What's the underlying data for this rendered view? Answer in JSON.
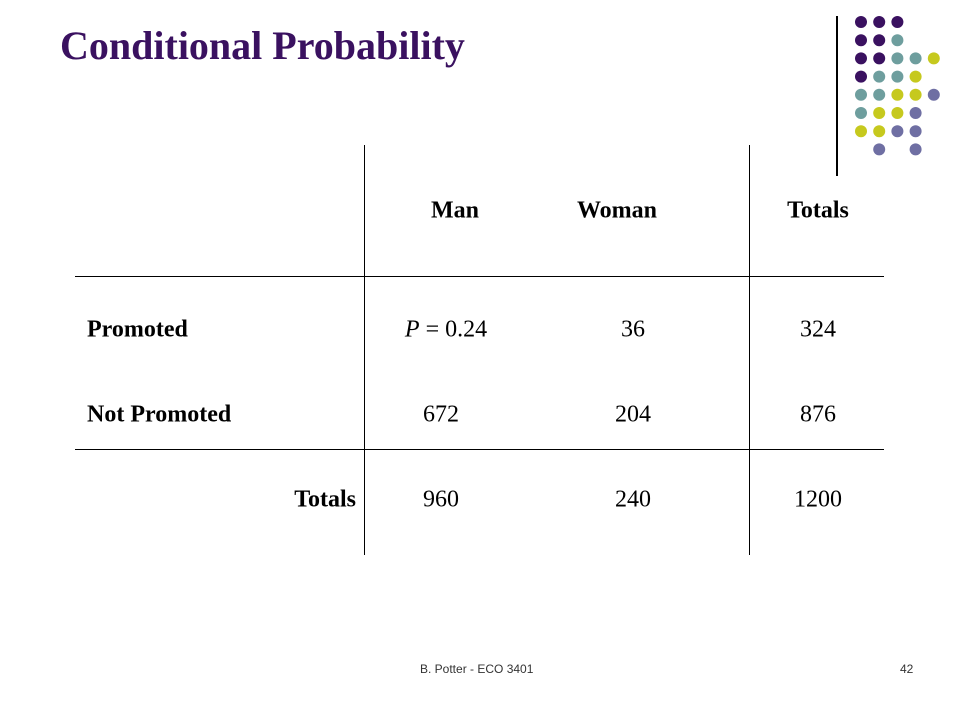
{
  "slide": {
    "title": "Conditional Probability",
    "footer": {
      "author_course": "B. Potter - ECO 3401",
      "page_number": "42"
    }
  },
  "colors": {
    "title": "#3a1160",
    "dot_purple": "#3a1160",
    "dot_teal": "#6e9e9e",
    "dot_yellow": "#c6c91e",
    "dot_lavender": "#6f6fa3"
  },
  "decoration": {
    "dot_grid": [
      [
        "purple",
        "purple",
        "purple",
        null,
        null
      ],
      [
        "purple",
        "purple",
        "teal",
        null,
        null
      ],
      [
        "purple",
        "purple",
        "teal",
        "teal",
        "yellow"
      ],
      [
        "purple",
        "teal",
        "teal",
        "yellow",
        null
      ],
      [
        "teal",
        "teal",
        "yellow",
        "yellow",
        "lavender"
      ],
      [
        "teal",
        "yellow",
        "yellow",
        "lavender",
        null
      ],
      [
        "yellow",
        "yellow",
        "lavender",
        "lavender",
        null
      ],
      [
        null,
        "lavender",
        null,
        "lavender",
        null
      ]
    ]
  },
  "table": {
    "headers": [
      "",
      "Man",
      "Woman",
      "Totals"
    ],
    "rows": [
      {
        "label": "Promoted",
        "man_prefix": "P",
        "man_value": " = 0.24",
        "woman": "36",
        "totals": "324"
      },
      {
        "label": "Not Promoted",
        "man": "672",
        "woman": "204",
        "totals": "876"
      },
      {
        "label": "Totals",
        "man": "960",
        "woman": "240",
        "totals": "1200"
      }
    ]
  }
}
